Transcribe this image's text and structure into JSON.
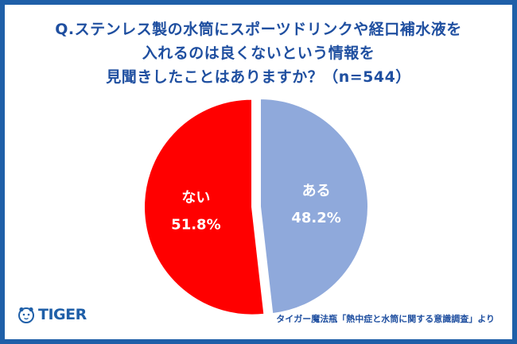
{
  "title_lines": [
    "Q.ステンレス製の水筒にスポーツドリンクや経口補水液を",
    "入れるのは良くないという情報を",
    "見聞きしたことはありますか？（n=544）"
  ],
  "chart_data": {
    "type": "pie",
    "title": "Q.ステンレス製の水筒にスポーツドリンクや経口補水液を入れるのは良くないという情報を見聞きしたことはありますか？（n=544）",
    "slices": [
      {
        "label": "ある",
        "value": 48.2,
        "value_label": "48.2%",
        "color": "#8fa9db"
      },
      {
        "label": "ない",
        "value": 51.8,
        "value_label": "51.8%",
        "color": "#ff0000"
      }
    ],
    "start": "12 o'clock, clockwise",
    "exploded": "ない"
  },
  "footer": {
    "logo_text": "TIGER",
    "source": "タイガー魔法瓶「熱中症と水筒に関する意識調査」より"
  },
  "colors": {
    "border": "#1f5fa8",
    "title": "#1f4fa0",
    "slice_yes": "#8fa9db",
    "slice_no": "#ff0000"
  }
}
